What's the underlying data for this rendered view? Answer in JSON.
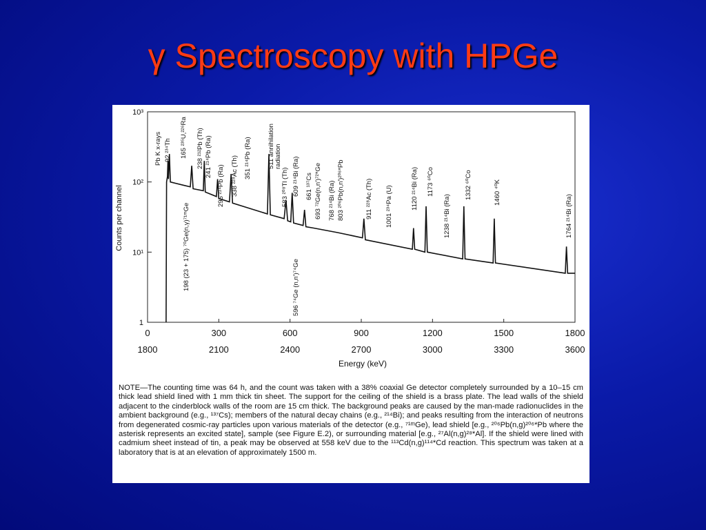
{
  "slide": {
    "title": "γ Spectroscopy with HPGe"
  },
  "chart_data": {
    "type": "line",
    "xlabel": "Energy (keV)",
    "ylabel": "Counts per channel",
    "yscale": "log",
    "xlim": [
      0,
      1800
    ],
    "xticks": [
      0,
      300,
      600,
      900,
      1200,
      1500,
      1800
    ],
    "x2lim": [
      1800,
      3600
    ],
    "x2ticks": [
      1800,
      2100,
      2400,
      2700,
      3000,
      3300,
      3600
    ],
    "ylim": [
      1,
      1000
    ],
    "yticks": [
      1,
      {
        "value": 10,
        "label": "10¹"
      },
      {
        "value": 100,
        "label": "10²"
      },
      {
        "value": 1000,
        "label": "10³"
      }
    ],
    "x": [
      78,
      80,
      84,
      86,
      88,
      92,
      96,
      150,
      180,
      186,
      192,
      235,
      239,
      243,
      290,
      295,
      300,
      345,
      352,
      358,
      505,
      511,
      517,
      575,
      583,
      590,
      603,
      609,
      615,
      655,
      661,
      667,
      700,
      800,
      905,
      911,
      917,
      1115,
      1120,
      1125,
      1168,
      1173,
      1178,
      1327,
      1332,
      1337,
      1455,
      1460,
      1465,
      1759,
      1764,
      1769,
      1800
    ],
    "series": [
      {
        "color": "#111111",
        "values": [
          1,
          100,
          120,
          200,
          110,
          250,
          100,
          90,
          85,
          170,
          80,
          75,
          200,
          72,
          62,
          110,
          58,
          52,
          130,
          50,
          35,
          250,
          34,
          30,
          55,
          28,
          27,
          70,
          26,
          24,
          40,
          23,
          22,
          19,
          16,
          30,
          15,
          11,
          22,
          11,
          10,
          45,
          10,
          8,
          45,
          8,
          7,
          30,
          7,
          5,
          12,
          5,
          5
        ]
      }
    ],
    "annotations": [
      "Pb K x-rays",
      "92 ²³⁴Th",
      "165 ²³⁵U,²²⁶Ra",
      "238 ²¹²Pb (Th)",
      "241 ²¹⁴Pb (Ra)",
      "295 ²¹⁴Pb (Ra)",
      "338 ²²⁸Ac (Th)",
      "351 ²¹⁴Pb (Ra)",
      "511 annihilation",
      "radiation",
      "583 ²⁰⁸Tl (Th)",
      "609 ²¹⁴Bi (Ra)",
      "661 ¹³⁷Cs",
      "693 ⁷²Ge(n,n')⁷²*Ge",
      "768 ²¹⁴Bi (Ra)",
      "803 ²⁰⁶Pb(n,n')²⁰⁶*Pb",
      "911 ²²⁸Ac (Th)",
      "1001 ²³⁴Pa (U)",
      "1120 ²¹⁴Bi (Ra)",
      "1173 ⁶⁰Co",
      "1238 ²¹⁴Bi (Ra)",
      "1332 ⁶⁰Co",
      "1460 ⁴⁰K",
      "1764 ²¹⁴Bi (Ra)",
      "198 (23 + 175) ⁷⁰Ge(n,γ)⁷¹ᵐGe",
      "596 ⁷⁴Ge (n,n')⁷⁴Ge"
    ]
  },
  "note": "NOTE—The counting time was 64 h, and the count was taken with a 38% coaxial Ge detector completely surrounded by a 10–15 cm thick lead shield lined with 1 mm thick tin sheet. The support for the ceiling of the shield is a brass plate. The lead walls of the shield adjacent to the cinderblock walls of the room are 15 cm thick. The background peaks are caused by the man-made radionuclides in the ambient background (e.g., ¹³⁷Cs); members of the natural decay chains (e.g., ²¹⁴Bi); and peaks resulting from the interaction of neutrons from degenerated cosmic-ray particles upon various materials of the detector (e.g., ⁷¹ᵐGe), lead shield [e.g., ²⁰⁶Pb(n,g)²⁰⁶*Pb where the asterisk represents an excited state], sample (see Figure E.2), or surrounding material [e.g., ²⁷Al(n,g)²⁸*Al]. If the shield were lined with cadmium sheet instead of tin, a peak may be observed at 558 keV due to the ¹¹³Cd(n,g)¹¹⁴*Cd reaction. This spectrum was taken at a laboratory that is at an elevation of approximately 1500 m."
}
